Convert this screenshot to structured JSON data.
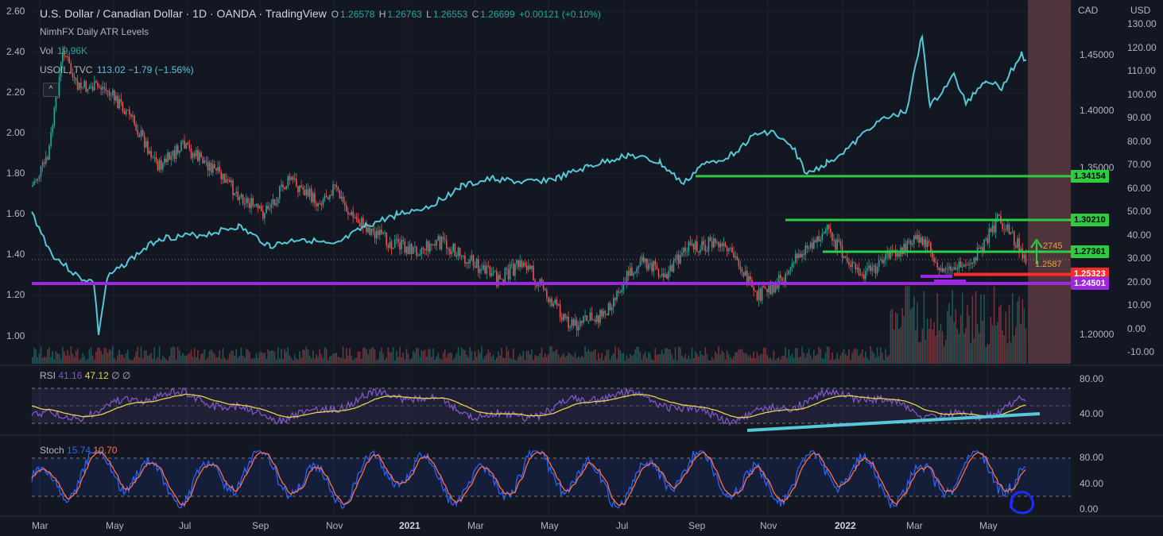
{
  "header": {
    "title": "U.S. Dollar / Canadian Dollar · 1D · OANDA · TradingView",
    "ohlc": {
      "o_label": "O",
      "o": "1.26578",
      "h_label": "H",
      "h": "1.26763",
      "l_label": "L",
      "l": "1.26553",
      "c_label": "C",
      "c": "1.26699",
      "change": "+0.00121 (+0.10%)"
    },
    "indicator_1": "NimhFX Daily ATR Levels",
    "vol_label": "Vol",
    "vol_value": "19.96K",
    "usoil_label": "USOIL, TVC",
    "usoil_value": "113.02 −1.79 (−1.56%)"
  },
  "colors": {
    "background": "#131722",
    "grid": "#1e222d",
    "up": "#26a69a",
    "down": "#ef5350",
    "oil_line": "#56c8d8",
    "green_level": "#2ecc40",
    "red_level": "#ff2a2a",
    "purple_level": "#9c27e0",
    "rsi_line": "#7e57c2",
    "rsi_ma": "#e6d34a",
    "stoch_k": "#2962ff",
    "stoch_d": "#ff7043",
    "trendline": "#56c8d8",
    "highlight_zone": "#5a3a40"
  },
  "left_axis": {
    "ticks": [
      "2.60",
      "2.40",
      "2.20",
      "2.00",
      "1.80",
      "1.60",
      "1.40",
      "1.20",
      "1.00"
    ]
  },
  "cad_axis": {
    "title": "CAD",
    "ticks": [
      "1.45000",
      "1.40000",
      "1.35000",
      "1.20000"
    ]
  },
  "usd_axis": {
    "title": "USD",
    "ticks": [
      "130.00",
      "120.00",
      "110.00",
      "100.00",
      "90.00",
      "80.00",
      "70.00",
      "60.00",
      "50.00",
      "40.00",
      "30.00",
      "20.00",
      "10.00",
      "0.00",
      "-10.00"
    ]
  },
  "price_levels": [
    {
      "value": "1.34154",
      "color": "#2ecc40",
      "text_color": "#000000"
    },
    {
      "value": "1.30210",
      "color": "#2ecc40",
      "text_color": "#000000"
    },
    {
      "value": "1.27361",
      "color": "#2ecc40",
      "text_color": "#000000"
    },
    {
      "value": "1.25323",
      "color": "#ff2a2a",
      "text_color": "#ffffff"
    },
    {
      "value": "1.24501",
      "color": "#9c27e0",
      "text_color": "#ffffff"
    }
  ],
  "level_notes": {
    "upper": "2745",
    "lower": "1.2587"
  },
  "rsi": {
    "label": "RSI",
    "v1": "41.16",
    "v2": "47.12",
    "flags": "∅ ∅",
    "ticks": [
      "80.00",
      "40.00"
    ]
  },
  "stoch": {
    "label": "Stoch",
    "k": "15.74",
    "d": "10.70",
    "ticks": [
      "80.00",
      "40.00",
      "0.00"
    ]
  },
  "time_axis": [
    "Mar",
    "May",
    "Jul",
    "Sep",
    "Nov",
    "2021",
    "Mar",
    "May",
    "Jul",
    "Sep",
    "Nov",
    "2022",
    "Mar",
    "May"
  ]
}
